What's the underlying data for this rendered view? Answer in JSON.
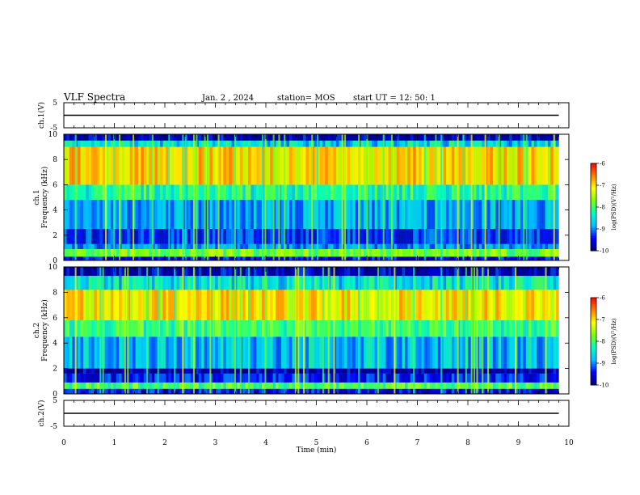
{
  "header": {
    "title": "VLF Spectra",
    "date": "Jan. 2 , 2024",
    "station": "station= MOS",
    "start": "start UT = 12: 50: 1"
  },
  "colors": {
    "spectrogram_scale": [
      "#00007f",
      "#0000ff",
      "#00bfff",
      "#00ffbf",
      "#7fff00",
      "#ffff00",
      "#ff7f00",
      "#ff0000",
      "#ffffff"
    ],
    "trace": "#000000"
  },
  "chart_data": [
    {
      "type": "line",
      "panel": "ch1-waveform",
      "ylabel": "ch.1(V)",
      "yticks": [
        "5",
        "-5"
      ],
      "ylim": [
        -5,
        5
      ],
      "xlim": [
        0,
        10
      ],
      "series": [
        {
          "values_note": "flat",
          "x": [
            0,
            9.8
          ],
          "y": [
            0,
            0
          ]
        }
      ]
    },
    {
      "type": "heatmap",
      "panel": "ch1-spectrogram",
      "ylabel": "ch.1\nFrequency (kHz)",
      "ylabel_lines": [
        "ch.1",
        "Frequency (kHz)"
      ],
      "yticks": [
        "0",
        "2",
        "4",
        "6",
        "8",
        "10"
      ],
      "ylim": [
        0,
        10
      ],
      "xlim": [
        0,
        10
      ],
      "data_xmax": 9.8,
      "colorbar": {
        "label": "log(PSD)(V²/Hz)",
        "ticks": [
          "-6",
          "-7",
          "-8",
          "-9",
          "-10"
        ],
        "range": [
          -10,
          -6
        ]
      },
      "bands": [
        {
          "from": 0.0,
          "to": 0.3,
          "level": -9.6
        },
        {
          "from": 0.3,
          "to": 0.9,
          "level": -7.8
        },
        {
          "from": 0.9,
          "to": 1.3,
          "level": -9.0
        },
        {
          "from": 1.3,
          "to": 2.5,
          "level": -9.3
        },
        {
          "from": 2.5,
          "to": 4.8,
          "level": -8.9
        },
        {
          "from": 4.8,
          "to": 6.0,
          "level": -8.2
        },
        {
          "from": 6.0,
          "to": 9.0,
          "level": -7.0
        },
        {
          "from": 9.0,
          "to": 9.5,
          "level": -8.6
        },
        {
          "from": 9.5,
          "to": 10.0,
          "level": -9.8
        }
      ]
    },
    {
      "type": "heatmap",
      "panel": "ch2-spectrogram",
      "ylabel": "ch.2\nFrequency (kHz)",
      "ylabel_lines": [
        "ch.2",
        "Frequency (kHz)"
      ],
      "yticks": [
        "0",
        "2",
        "4",
        "6",
        "8",
        "10"
      ],
      "ylim": [
        0,
        10
      ],
      "xlim": [
        0,
        10
      ],
      "data_xmax": 9.8,
      "colorbar": {
        "label": "log(PSD)(V²/Hz)",
        "ticks": [
          "-6",
          "-7",
          "-8",
          "-9",
          "-10"
        ],
        "range": [
          -10,
          -6
        ]
      },
      "bands": [
        {
          "from": 0.0,
          "to": 0.4,
          "level": -9.5
        },
        {
          "from": 0.4,
          "to": 0.9,
          "level": -8.0
        },
        {
          "from": 0.9,
          "to": 1.6,
          "level": -9.4
        },
        {
          "from": 1.6,
          "to": 2.0,
          "level": -9.9
        },
        {
          "from": 2.0,
          "to": 4.5,
          "level": -8.8
        },
        {
          "from": 4.5,
          "to": 5.8,
          "level": -8.1
        },
        {
          "from": 5.8,
          "to": 8.2,
          "level": -7.1
        },
        {
          "from": 8.2,
          "to": 9.3,
          "level": -8.5
        },
        {
          "from": 9.3,
          "to": 10.0,
          "level": -9.8
        }
      ]
    },
    {
      "type": "line",
      "panel": "ch2-waveform",
      "ylabel": "ch.2(V)",
      "yticks": [
        "5",
        "-5"
      ],
      "ylim": [
        -5,
        5
      ],
      "xlim": [
        0,
        10
      ],
      "xlabel": "Time (min)",
      "xticks": [
        "0",
        "1",
        "2",
        "3",
        "4",
        "5",
        "6",
        "7",
        "8",
        "9",
        "10"
      ],
      "series": [
        {
          "x": [
            0,
            9.8
          ],
          "y": [
            0,
            0
          ]
        }
      ]
    }
  ]
}
